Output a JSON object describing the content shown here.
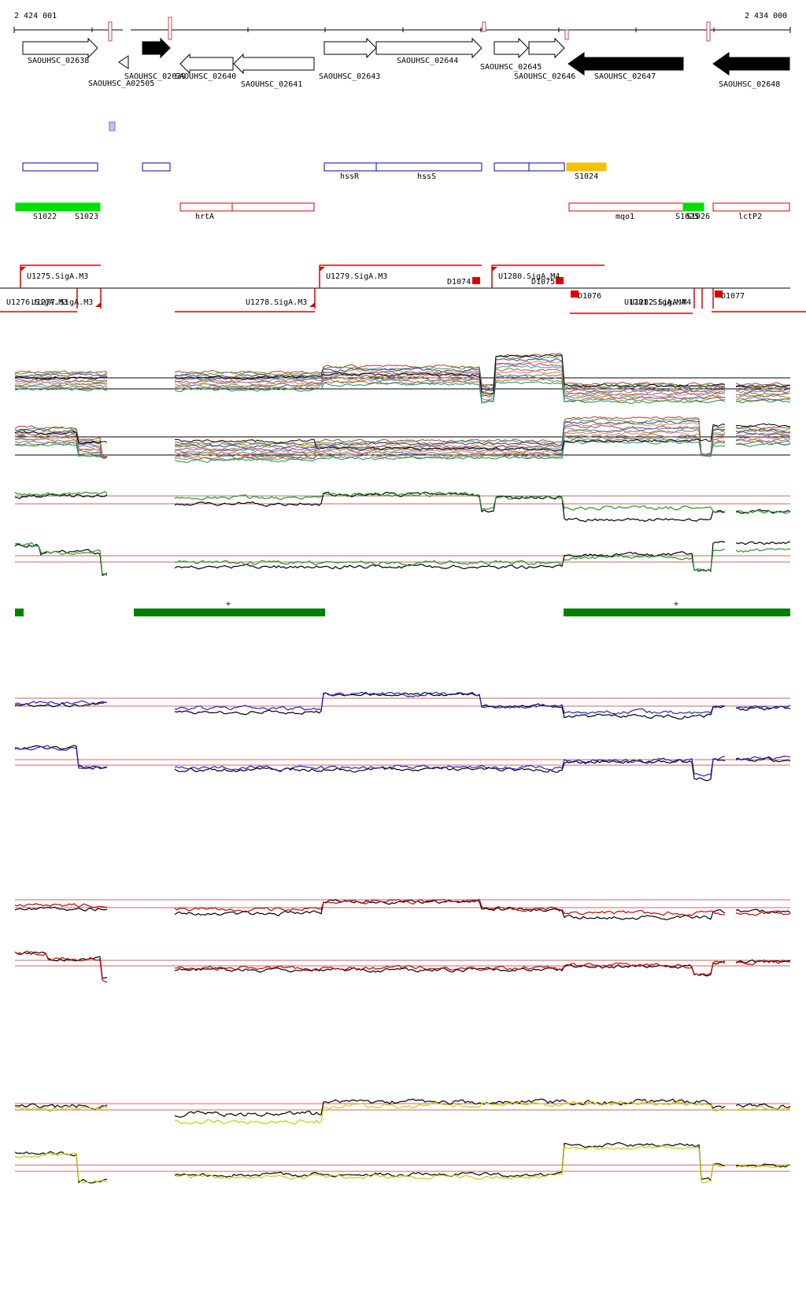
{
  "coordinates": {
    "start_label": "2 424 001",
    "end_label": "2 434 000"
  },
  "genes": [
    {
      "label": "SAOUHSC_02638",
      "color": "#ffffff"
    },
    {
      "label": "SAOUHSC_A02505",
      "color": "#ffffff"
    },
    {
      "label": "SAOUHSC_02639",
      "color": "#000000"
    },
    {
      "label": "SAOUHSC_02640",
      "color": "#ffffff"
    },
    {
      "label": "SAOUHSC_02641",
      "color": "#ffffff"
    },
    {
      "label": "SAOUHSC_02643",
      "color": "#ffffff"
    },
    {
      "label": "SAOUHSC_02644",
      "color": "#ffffff"
    },
    {
      "label": "SAOUHSC_02645",
      "color": "#ffffff"
    },
    {
      "label": "SAOUHSC_02646",
      "color": "#ffffff"
    },
    {
      "label": "SAOUHSC_02647",
      "color": "#000000"
    },
    {
      "label": "SAOUHSC_02648",
      "color": "#000000"
    }
  ],
  "operons": {
    "labels": [
      "hssR",
      "hssS",
      "S1024"
    ]
  },
  "regulons": {
    "labels": [
      "S1022",
      "S1023",
      "hrtA",
      "mqo1",
      "S1025",
      "S1026",
      "lctP2"
    ]
  },
  "promoters": {
    "labels": [
      "U1275.SigA.M3",
      "U1276.SigA.M3",
      "U1277.SigA.M3",
      "U1278.SigA.M3",
      "U1279.SigA.M3",
      "D1074",
      "U1280.SigA.M4",
      "D1075",
      "D1076",
      "U1281.SigA.M4",
      "U1282.SigA.M4",
      "D1077"
    ]
  },
  "misc": {
    "plus_mark": "+"
  },
  "colors": {
    "gene_outline": "#000000",
    "operon": "#0000cc",
    "orange": "#f5c000",
    "green": "#00e000",
    "red": "#dd0000",
    "dark_green": "#008000",
    "track_green": "#229922",
    "track_blue": "#2222cc",
    "track_red": "#cc0000",
    "track_yellow": "#cccc00",
    "ref_line": "#cc6666"
  }
}
